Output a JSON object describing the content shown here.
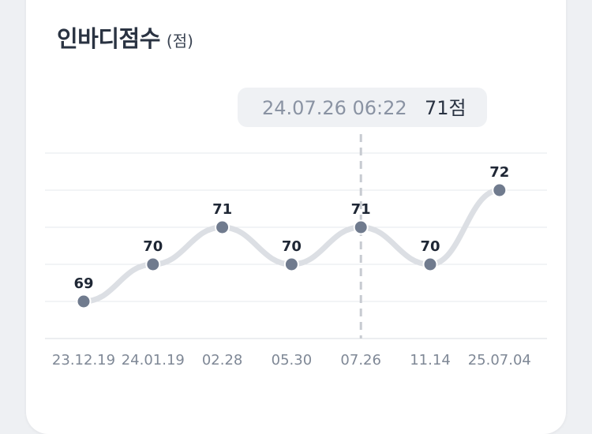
{
  "header": {
    "title": "인바디점수",
    "unit": "(점)"
  },
  "tooltip": {
    "date": "24.07.26 06:22",
    "value": "71점",
    "index": 4
  },
  "colors": {
    "line": "#dcdfe4",
    "point": "#707b8e",
    "grid": "#e6e8ec",
    "crosshair": "#c7cbd1"
  },
  "chart_data": {
    "type": "line",
    "x": [
      "23.12.19",
      "24.01.19",
      "02.28",
      "05.30",
      "07.26",
      "11.14",
      "25.07.04"
    ],
    "y": [
      69,
      70,
      71,
      70,
      71,
      70,
      72
    ],
    "data_labels": [
      "69",
      "70",
      "71",
      "70",
      "71",
      "70",
      "72"
    ],
    "ylim": [
      68,
      73
    ],
    "grid": true,
    "legend": "none"
  }
}
